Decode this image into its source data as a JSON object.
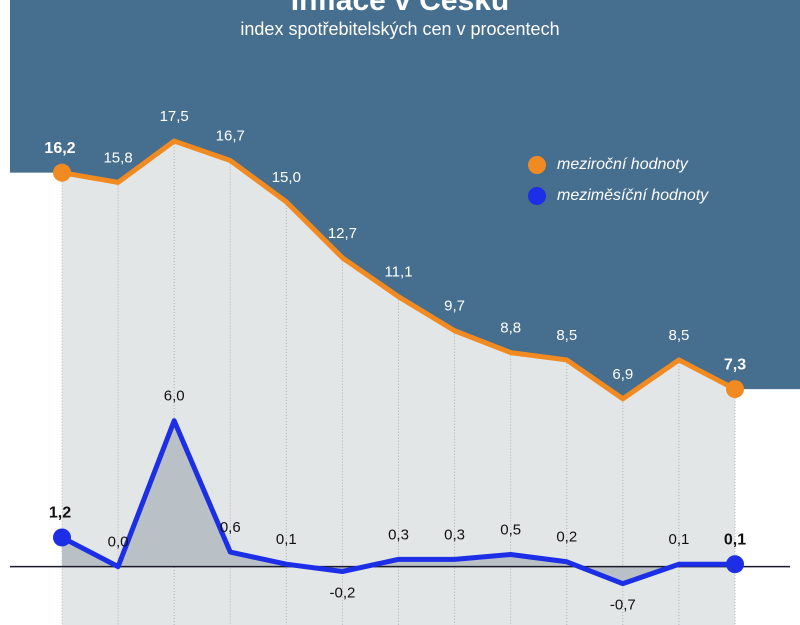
{
  "chart_data": {
    "type": "line",
    "title": "Inflace v Česku",
    "subtitle": "index spotřebitelských cen v procentech",
    "categories": [
      null,
      null,
      null,
      null,
      null,
      null,
      null,
      null,
      null,
      null,
      null,
      null,
      null
    ],
    "ylim": [
      -2.4,
      23.3
    ],
    "legend": "upper right",
    "series": [
      {
        "name": "meziroční hodnoty",
        "color": "#f28a22",
        "values": [
          16.2,
          15.8,
          17.5,
          16.7,
          15.0,
          12.7,
          11.1,
          9.7,
          8.8,
          8.5,
          6.9,
          8.5,
          7.3
        ],
        "value_labels": [
          "16,2",
          "15,8",
          "17,5",
          "16,7",
          "15,0",
          "12,7",
          "11,1",
          "9,7",
          "8,8",
          "8,5",
          "6,9",
          "8,5",
          "7,3"
        ]
      },
      {
        "name": "meziměsíční hodnoty",
        "color": "#1d2fe6",
        "values": [
          1.2,
          0.0,
          6.0,
          0.6,
          0.1,
          -0.2,
          0.3,
          0.3,
          0.5,
          0.2,
          -0.7,
          0.1,
          0.1
        ],
        "value_labels": [
          "1,2",
          "0,0",
          "6,0",
          "0,6",
          "0,1",
          "-0,2",
          "0,3",
          "0,3",
          "0,5",
          "0,2",
          "-0,7",
          "0,1",
          "0,1"
        ]
      }
    ]
  }
}
